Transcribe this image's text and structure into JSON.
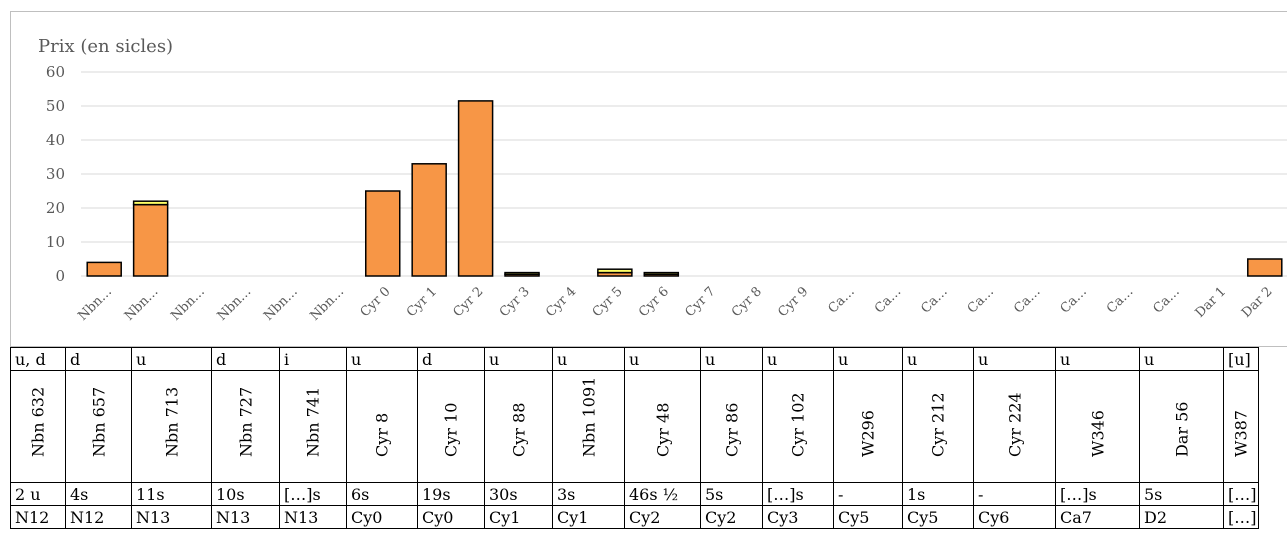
{
  "chart_data": {
    "type": "bar",
    "ylabel": "Prix (en sicles)",
    "ylim": [
      0,
      60
    ],
    "yticks": [
      0,
      10,
      20,
      30,
      40,
      50,
      60
    ],
    "grid": true,
    "categories": [
      "Nbn…",
      "Nbn…",
      "Nbn…",
      "Nbn…",
      "Nbn…",
      "Nbn…",
      "Cyr 0",
      "Cyr 1",
      "Cyr 2",
      "Cyr 3",
      "Cyr 4",
      "Cyr 5",
      "Cyr 6",
      "Cyr 7",
      "Cyr 8",
      "Cyr 9",
      "Ca…",
      "Ca…",
      "Ca…",
      "Ca…",
      "Ca…",
      "Ca…",
      "Ca…",
      "Ca…",
      "Dar 1",
      "Dar 2"
    ],
    "series": [
      {
        "values": [
          4,
          21,
          0,
          0,
          0,
          0,
          25,
          33,
          51.5,
          0.5,
          0,
          1,
          0.5,
          0,
          0,
          0,
          0,
          0,
          0,
          0,
          0,
          0,
          0,
          0,
          0,
          5
        ],
        "color": "#f79646"
      },
      {
        "values": [
          0,
          1,
          0,
          0,
          0,
          0,
          0,
          0,
          0,
          0.5,
          0,
          1,
          0.5,
          0,
          0,
          0,
          0,
          0,
          0,
          0,
          0,
          0,
          0,
          0,
          0,
          0
        ],
        "color": "#ffff66"
      }
    ]
  },
  "table": {
    "type_row": [
      "u, d",
      "d",
      "u",
      "d",
      "i",
      "u",
      "d",
      "u",
      "u",
      "u",
      "u",
      "u",
      "u",
      "u",
      "u",
      "u",
      "u",
      "[u]"
    ],
    "ref_row": [
      "Nbn 632",
      "Nbn 657",
      "Nbn 713",
      "Nbn 727",
      "Nbn 741",
      "Cyr 8",
      "Cyr 10",
      "Cyr 88",
      "Nbn 1091",
      "Cyr 48",
      "Cyr 86",
      "Cyr 102",
      "W296",
      "Cyr 212",
      "Cyr 224",
      "W346",
      "Dar 56",
      "W387"
    ],
    "price_row": [
      "2 u",
      "4s",
      "11s",
      "10s",
      "[…]s",
      "6s",
      "19s",
      "30s",
      "3s",
      "46s ½",
      "5s",
      "[…]s",
      "-",
      "1s",
      "-",
      "[…]s",
      "5s",
      "[…]"
    ],
    "code_row": [
      "N12",
      "N12",
      "N13",
      "N13",
      "N13",
      "Cy0",
      "Cy0",
      "Cy1",
      "Cy1",
      "Cy2",
      "Cy2",
      "Cy3",
      "Cy5",
      "Cy5",
      "Cy6",
      "Ca7",
      "D2",
      "[…]"
    ]
  }
}
